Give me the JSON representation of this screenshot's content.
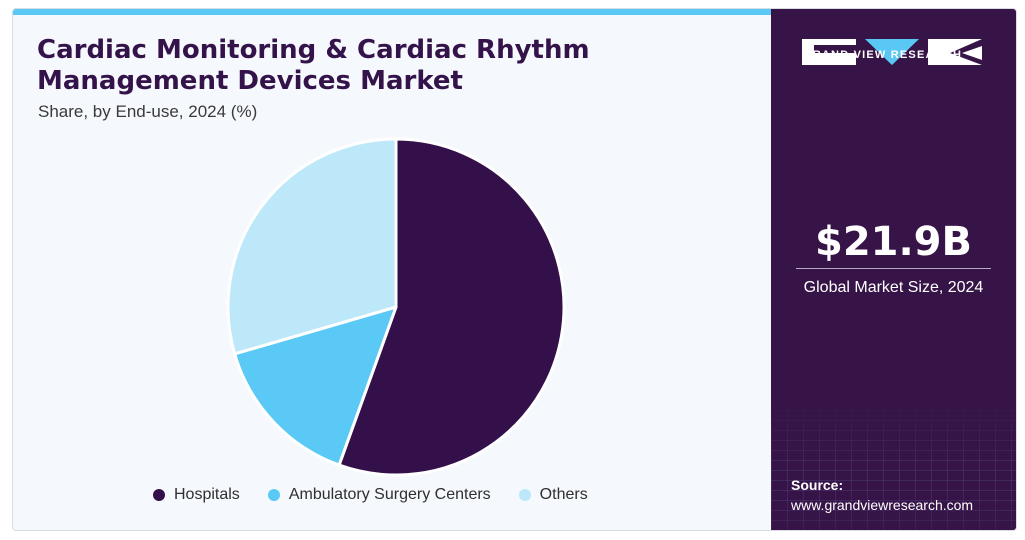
{
  "title": "Cardiac Monitoring & Cardiac Rhythm Management Devices Market",
  "subtitle": "Share, by End-use, 2024 (%)",
  "colors": {
    "hospitals": "#34104a",
    "ambulatory": "#5bc9f5",
    "others": "#bde8f9",
    "panel": "#371447",
    "accent": "#5ac8f5"
  },
  "chart_data": {
    "type": "pie",
    "categories": [
      "Hospitals",
      "Ambulatory Surgery Centers",
      "Others"
    ],
    "values": [
      55.5,
      15.0,
      29.5
    ],
    "unit": "%",
    "start_angle": "12 o'clock",
    "direction": "clockwise",
    "legend_position": "bottom"
  },
  "legend": [
    {
      "label": "Hospitals",
      "color": "#34104a"
    },
    {
      "label": "Ambulatory Surgery Centers",
      "color": "#5bc9f5"
    },
    {
      "label": "Others",
      "color": "#bde8f9"
    }
  ],
  "sidebar": {
    "brand": "GRAND VIEW RESEARCH",
    "logo_icon": "gvr-logo-icon",
    "market_size": "$21.9B",
    "market_size_label": "Global Market Size, 2024",
    "source_title": "Source:",
    "source_url": "www.grandviewresearch.com"
  }
}
